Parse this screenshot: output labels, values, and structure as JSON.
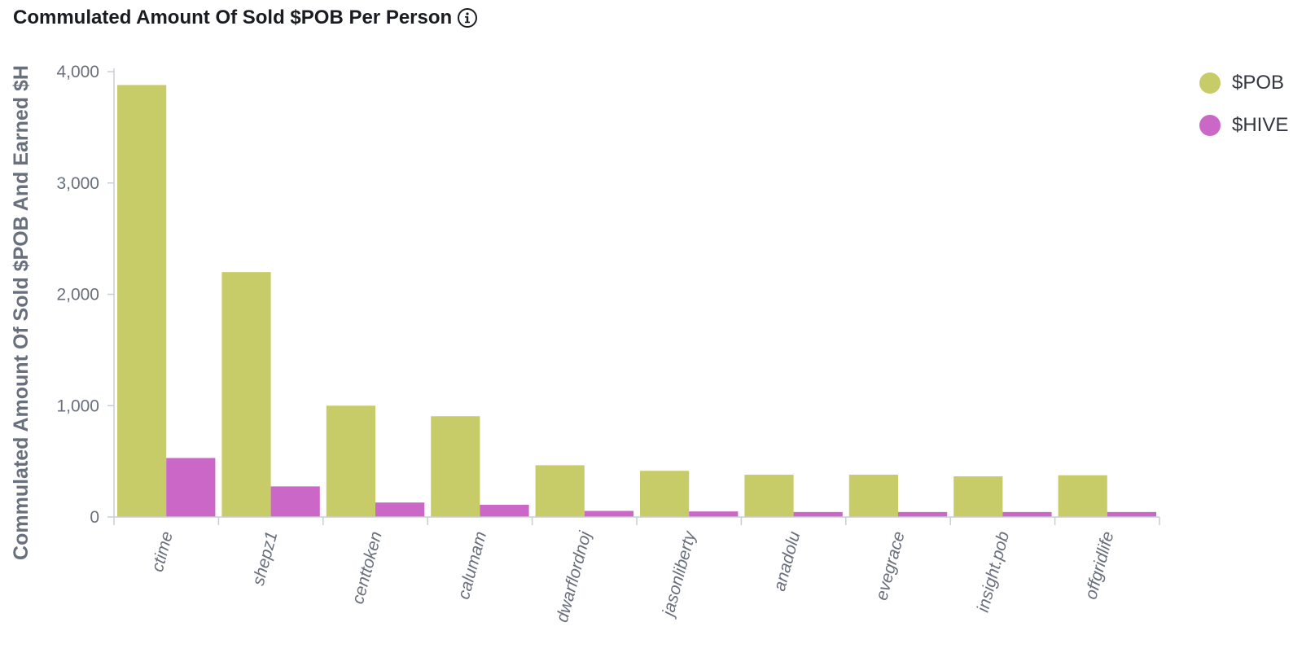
{
  "panel": {
    "title": "Commulated Amount Of Sold $POB Per Person"
  },
  "colors": {
    "pob": "#c8cc68",
    "hive": "#cb67c7",
    "axis": "#c9ced6",
    "text": "#69707d"
  },
  "chart_data": {
    "type": "bar",
    "title": "Commulated Amount Of Sold $POB Per Person",
    "xlabel": "",
    "ylabel": "Commulated Amount Of Sold $POB And Earned $H",
    "ylim": [
      0,
      4000
    ],
    "yticks": [
      0,
      1000,
      2000,
      3000,
      4000
    ],
    "ytick_labels": [
      "0",
      "1,000",
      "2,000",
      "3,000",
      "4,000"
    ],
    "grid": false,
    "legend_position": "top-right",
    "categories": [
      "ctime",
      "shepz1",
      "centtoken",
      "calumam",
      "dwarflordnoj",
      "jasonliberty",
      "anadolu",
      "evegrace",
      "insight.pob",
      "offgridlife"
    ],
    "series": [
      {
        "name": "$POB",
        "color": "#c8cc68",
        "values": [
          3880,
          2200,
          1000,
          905,
          465,
          415,
          380,
          380,
          365,
          375
        ]
      },
      {
        "name": "$HIVE",
        "color": "#cb67c7",
        "values": [
          530,
          275,
          130,
          110,
          55,
          50,
          45,
          45,
          45,
          45
        ]
      }
    ]
  }
}
